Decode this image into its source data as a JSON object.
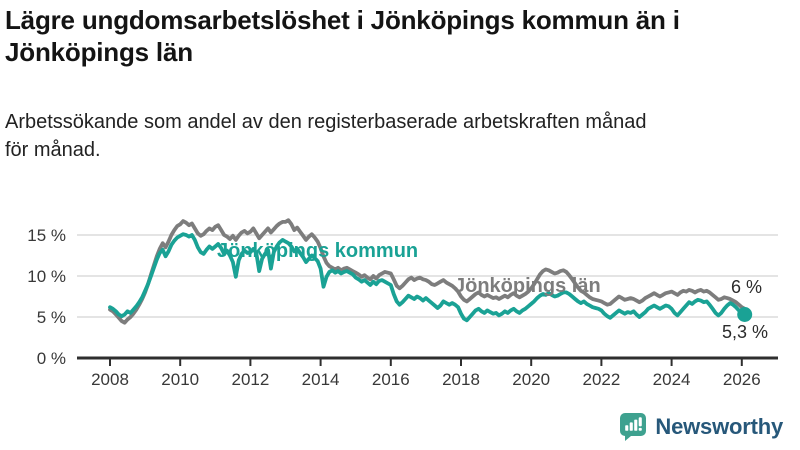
{
  "title_lines": [
    "Lägre ungdomsarbetslöshet i Jönköpings kommun än i",
    "Jönköpings län"
  ],
  "subtitle_lines": [
    "Arbetssökande som andel av den registerbaserade arbetskraften månad",
    "för månad."
  ],
  "footer": {
    "brand": "Newsworthy"
  },
  "colors": {
    "kommun_line": "#1AA295",
    "lan_line": "#7D7D7D",
    "grid": "#DCDCDC",
    "axis": "#2F2F2F",
    "tick_label": "#383838",
    "end_label": "#2B2B2B",
    "brand_icon": "#3EA18F",
    "brand_text": "#27587A"
  },
  "chart_data": {
    "type": "line",
    "x_unit": "month",
    "x_start_year": 2008,
    "x_end_label": "2026",
    "x_tick_years": [
      2008,
      2010,
      2012,
      2014,
      2016,
      2018,
      2020,
      2022,
      2024,
      2026
    ],
    "y_ticks": [
      {
        "value": 0,
        "label": "0 %"
      },
      {
        "value": 5,
        "label": "5 %"
      },
      {
        "value": 10,
        "label": "10 %"
      },
      {
        "value": 15,
        "label": "15 %"
      }
    ],
    "ylim": [
      0,
      17.5
    ],
    "grid": "horizontal",
    "legend": "inline-labels",
    "series": [
      {
        "name": "Jönköpings län",
        "color": "#7D7D7D",
        "end_label": "6 %",
        "end_dot": false,
        "values": [
          5.9,
          5.7,
          5.3,
          4.9,
          4.5,
          4.3,
          4.7,
          5.0,
          5.4,
          5.9,
          6.5,
          7.2,
          8.0,
          9.0,
          10.2,
          11.3,
          12.4,
          13.3,
          14.0,
          13.5,
          14.2,
          15.0,
          15.6,
          16.1,
          16.3,
          16.7,
          16.5,
          16.2,
          16.4,
          15.8,
          15.2,
          14.9,
          15.1,
          15.5,
          15.8,
          15.6,
          16.0,
          16.2,
          15.6,
          15.0,
          14.8,
          14.5,
          14.9,
          14.4,
          14.9,
          15.3,
          15.5,
          15.2,
          15.4,
          15.8,
          15.2,
          14.6,
          15.0,
          15.4,
          15.8,
          15.3,
          15.7,
          16.1,
          16.4,
          16.6,
          16.6,
          16.8,
          16.3,
          15.6,
          15.9,
          15.4,
          14.9,
          14.4,
          14.8,
          15.1,
          14.7,
          14.2,
          13.4,
          12.4,
          11.6,
          11.2,
          11.0,
          10.8,
          11.0,
          10.7,
          10.9,
          11.0,
          10.8,
          10.6,
          10.4,
          10.2,
          9.9,
          10.1,
          9.8,
          9.6,
          10.0,
          9.7,
          10.1,
          10.3,
          10.5,
          10.4,
          10.3,
          9.6,
          8.8,
          8.5,
          8.8,
          9.2,
          9.6,
          9.8,
          9.5,
          9.7,
          9.8,
          9.6,
          9.5,
          9.3,
          9.0,
          8.9,
          9.1,
          9.3,
          9.5,
          9.2,
          9.0,
          8.8,
          8.5,
          8.1,
          7.5,
          7.1,
          6.9,
          7.2,
          7.5,
          7.8,
          8.0,
          7.7,
          7.5,
          7.7,
          7.5,
          7.3,
          7.4,
          7.2,
          7.4,
          7.6,
          7.4,
          7.7,
          7.9,
          7.6,
          7.4,
          7.6,
          7.8,
          8.1,
          8.5,
          9.0,
          9.6,
          10.2,
          10.6,
          10.8,
          10.7,
          10.5,
          10.3,
          10.4,
          10.6,
          10.7,
          10.5,
          10.1,
          9.6,
          9.1,
          8.6,
          8.2,
          8.0,
          7.7,
          7.4,
          7.2,
          7.1,
          7.0,
          6.9,
          6.7,
          6.5,
          6.6,
          6.9,
          7.2,
          7.5,
          7.3,
          7.1,
          7.2,
          7.3,
          7.2,
          7.0,
          6.8,
          7.0,
          7.3,
          7.5,
          7.7,
          7.9,
          7.7,
          7.5,
          7.7,
          7.9,
          8.0,
          8.1,
          7.9,
          7.7,
          8.0,
          8.2,
          8.1,
          8.3,
          8.2,
          8.0,
          8.2,
          8.3,
          8.1,
          8.2,
          8.0,
          7.7,
          7.4,
          7.1,
          7.2,
          7.4,
          7.3,
          7.2,
          7.0,
          6.8,
          6.5,
          6.2,
          6.0
        ]
      },
      {
        "name": "Jönköpings kommun",
        "color": "#1AA295",
        "end_label": "5,3 %",
        "end_dot": true,
        "values": [
          6.2,
          6.0,
          5.7,
          5.3,
          5.1,
          5.3,
          5.7,
          5.5,
          5.9,
          6.3,
          6.8,
          7.4,
          8.2,
          9.0,
          10.0,
          11.0,
          12.0,
          12.8,
          13.2,
          12.4,
          13.0,
          13.8,
          14.3,
          14.7,
          14.9,
          15.1,
          15.0,
          14.8,
          15.0,
          14.4,
          13.5,
          12.9,
          12.7,
          13.2,
          13.6,
          13.3,
          13.6,
          13.9,
          13.4,
          12.7,
          13.1,
          12.5,
          11.7,
          9.9,
          11.9,
          12.7,
          13.1,
          12.8,
          12.9,
          13.3,
          12.8,
          10.6,
          12.1,
          12.7,
          13.2,
          10.9,
          12.9,
          13.6,
          14.1,
          14.4,
          14.2,
          14.0,
          13.6,
          13.0,
          13.3,
          12.8,
          12.3,
          11.7,
          12.1,
          12.5,
          12.2,
          11.8,
          10.9,
          8.7,
          9.9,
          10.5,
          10.7,
          10.4,
          10.6,
          10.3,
          10.5,
          10.6,
          10.4,
          10.2,
          9.8,
          9.6,
          9.3,
          9.5,
          9.2,
          8.9,
          9.3,
          9.0,
          9.4,
          9.5,
          9.3,
          9.1,
          8.9,
          7.8,
          6.9,
          6.5,
          6.8,
          7.2,
          7.6,
          7.4,
          7.2,
          7.5,
          7.3,
          7.0,
          7.3,
          7.0,
          6.7,
          6.4,
          6.1,
          6.4,
          6.9,
          6.7,
          6.5,
          6.7,
          6.5,
          6.2,
          5.4,
          4.8,
          4.6,
          5.0,
          5.4,
          5.8,
          6.0,
          5.7,
          5.5,
          5.8,
          5.6,
          5.4,
          5.5,
          5.2,
          5.4,
          5.7,
          5.5,
          5.8,
          6.0,
          5.7,
          5.5,
          5.8,
          6.0,
          6.3,
          6.6,
          6.9,
          7.3,
          7.6,
          7.8,
          7.7,
          7.9,
          7.7,
          7.5,
          7.6,
          7.8,
          8.0,
          8.0,
          7.8,
          7.5,
          7.2,
          6.9,
          6.7,
          6.9,
          6.6,
          6.4,
          6.2,
          6.1,
          6.0,
          5.8,
          5.4,
          5.1,
          4.9,
          5.2,
          5.5,
          5.8,
          5.6,
          5.4,
          5.6,
          5.5,
          5.7,
          5.3,
          5.0,
          5.3,
          5.6,
          6.0,
          6.2,
          6.4,
          6.2,
          6.0,
          6.2,
          6.4,
          6.3,
          6.0,
          5.5,
          5.2,
          5.6,
          6.0,
          6.4,
          6.8,
          6.6,
          6.9,
          7.1,
          7.0,
          6.8,
          6.9,
          6.5,
          6.0,
          5.5,
          5.2,
          5.5,
          6.0,
          6.4,
          6.7,
          6.5,
          6.2,
          5.8,
          5.6,
          5.3
        ]
      }
    ]
  }
}
